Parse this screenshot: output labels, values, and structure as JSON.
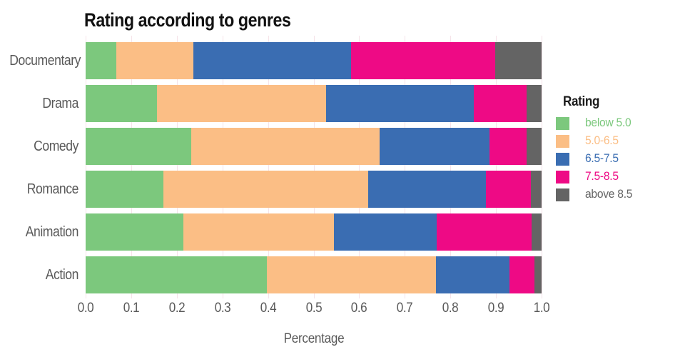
{
  "title": "Rating according to genres",
  "chart_data": {
    "type": "bar",
    "orientation": "horizontal-stacked",
    "title": "Rating according to genres",
    "xlabel": "Percentage",
    "ylabel": "",
    "xlim": [
      0,
      1
    ],
    "xticks": [
      "0.0",
      "0.1",
      "0.2",
      "0.3",
      "0.4",
      "0.5",
      "0.6",
      "0.7",
      "0.8",
      "0.9",
      "1.0"
    ],
    "grid": "vertical light-pink gridlines, no axis lines",
    "legend_title": "Rating",
    "legend_position": "right",
    "categories": [
      "Documentary",
      "Drama",
      "Comedy",
      "Romance",
      "Animation",
      "Action"
    ],
    "series": [
      {
        "name": "below 5.0",
        "color": "#7CC87D",
        "values": [
          0.068,
          0.156,
          0.232,
          0.171,
          0.214,
          0.397
        ]
      },
      {
        "name": "5.0-6.5",
        "color": "#FBBE85",
        "values": [
          0.168,
          0.372,
          0.413,
          0.448,
          0.33,
          0.372
        ]
      },
      {
        "name": "6.5-7.5",
        "color": "#3A6DB2",
        "values": [
          0.346,
          0.324,
          0.24,
          0.259,
          0.226,
          0.161
        ]
      },
      {
        "name": "7.5-8.5",
        "color": "#EE0A85",
        "values": [
          0.316,
          0.115,
          0.082,
          0.098,
          0.208,
          0.054
        ]
      },
      {
        "name": "above 8.5",
        "color": "#646464",
        "values": [
          0.102,
          0.033,
          0.033,
          0.024,
          0.022,
          0.016
        ]
      }
    ]
  },
  "colors": {
    "background": "#FFFFFF",
    "gridline": "#F6E3E9",
    "axis_text": "#595959",
    "title_text": "#111111"
  }
}
